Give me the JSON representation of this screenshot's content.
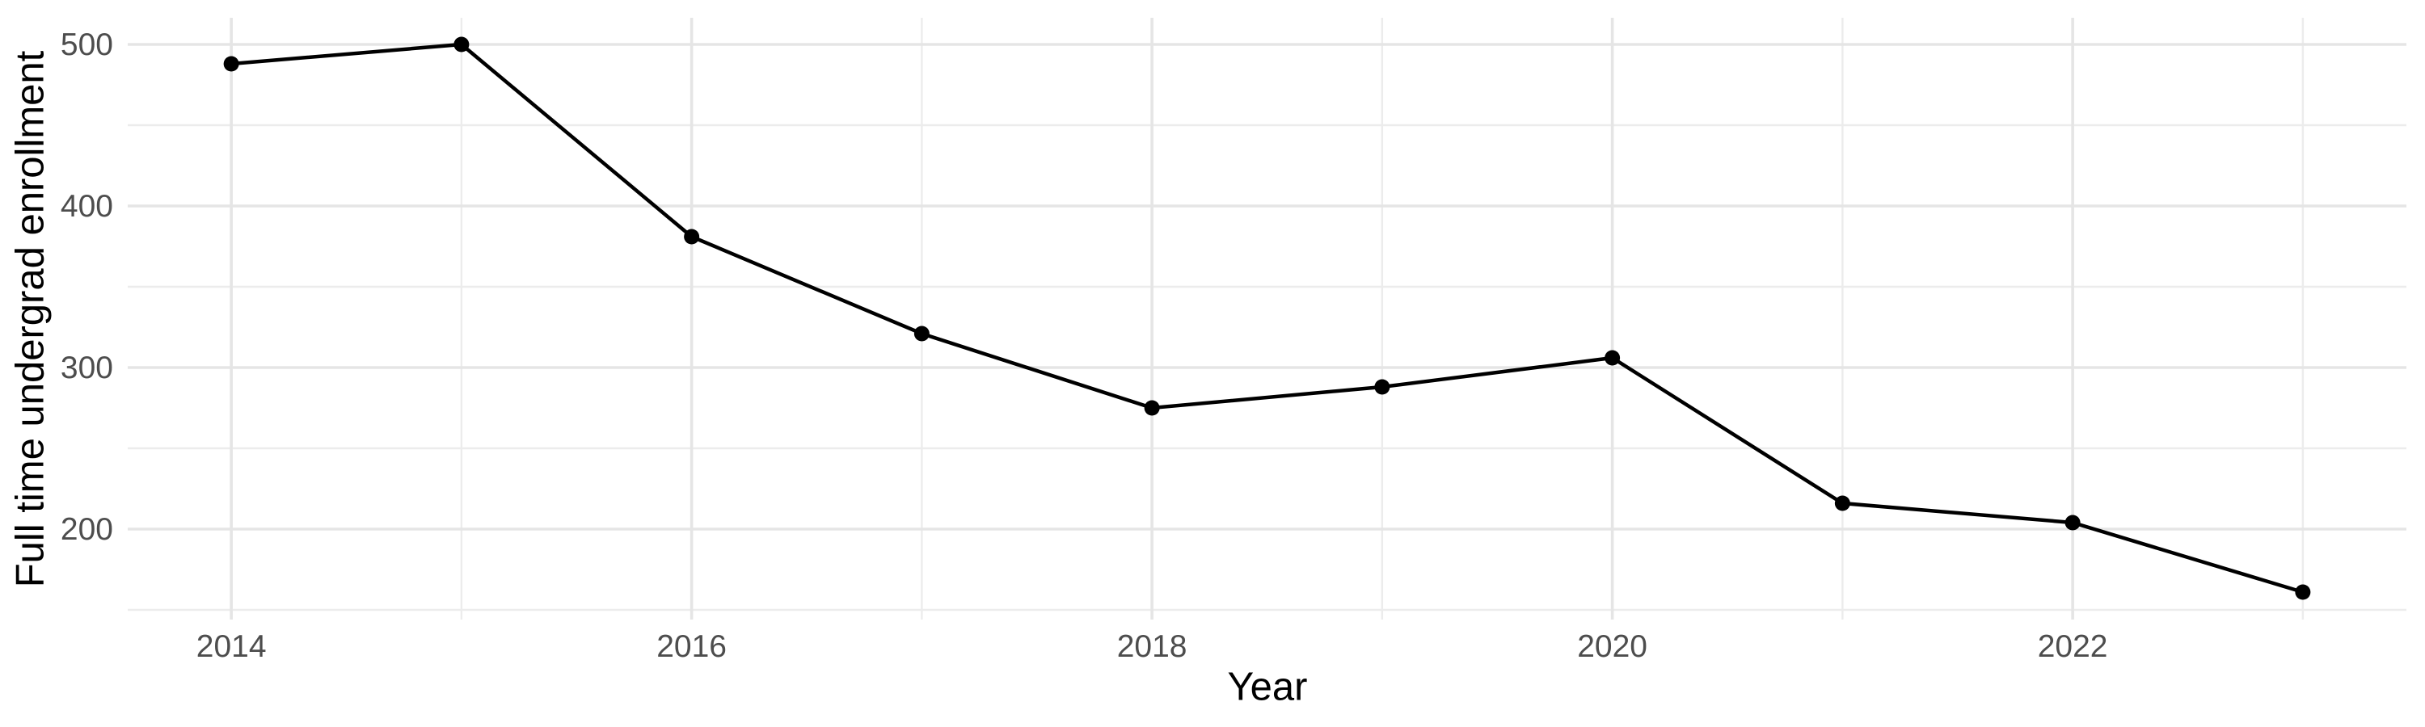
{
  "chart_data": {
    "type": "line",
    "title": "",
    "xlabel": "Year",
    "ylabel": "Full time undergrad enrollment",
    "x": [
      2014,
      2015,
      2016,
      2017,
      2018,
      2019,
      2020,
      2021,
      2022,
      2023
    ],
    "series": [
      {
        "name": "Full time undergrad enrollment",
        "values": [
          488,
          500,
          381,
          321,
          275,
          288,
          306,
          216,
          204,
          161
        ]
      }
    ],
    "x_tick_labels": [
      "2014",
      "2016",
      "2018",
      "2020",
      "2022"
    ],
    "x_ticks": [
      2014,
      2016,
      2018,
      2020,
      2022
    ],
    "x_minor_ticks": [
      2015,
      2017,
      2019,
      2021,
      2023
    ],
    "y_tick_labels": [
      "200",
      "300",
      "400",
      "500"
    ],
    "y_ticks": [
      200,
      300,
      400,
      500
    ],
    "y_minor_ticks": [
      150,
      250,
      350,
      450
    ],
    "xlim": [
      2013.55,
      2023.45
    ],
    "ylim": [
      144,
      516.5
    ],
    "grid": "on",
    "legend": "none",
    "colors": {
      "line": "#000000",
      "point": "#000000",
      "grid_major": "#E5E5E5",
      "grid_minor": "#ECECEC",
      "tick_label": "#4D4D4D",
      "axis_title": "#000000",
      "background": "#FFFFFF"
    }
  }
}
